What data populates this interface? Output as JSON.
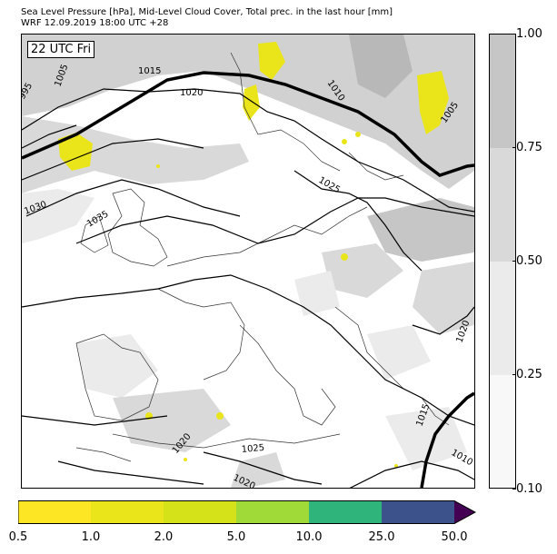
{
  "header": {
    "title_line1": "Sea Level Pressure [hPa], Mid-Level Cloud Cover, Total prec. in the last hour [mm]",
    "title_line2": "WRF 12.09.2019 18:00 UTC +28"
  },
  "map": {
    "time_label": "22 UTC Fri",
    "isobar_labels": [
      "1015",
      "1020",
      "1005",
      "995",
      "1010",
      "1005",
      "1025",
      "1030",
      "1035",
      "1020",
      "1015",
      "1010",
      "1020",
      "1025",
      "1020"
    ]
  },
  "cloud_colorbar": {
    "ticks": [
      "1.00",
      "0.75",
      "0.50",
      "0.25",
      "0.10"
    ],
    "colors": [
      "#c6c6c6",
      "#d9d9d9",
      "#ebebeb",
      "#f8f8f8"
    ]
  },
  "precip_colorbar": {
    "ticks": [
      "0.5",
      "1.0",
      "2.0",
      "5.0",
      "10.0",
      "25.0",
      "50.0"
    ],
    "colors": [
      "#fde725",
      "#eae51a",
      "#d5e21a",
      "#a0da39",
      "#2fb47c",
      "#3b528b",
      "#440154"
    ]
  }
}
